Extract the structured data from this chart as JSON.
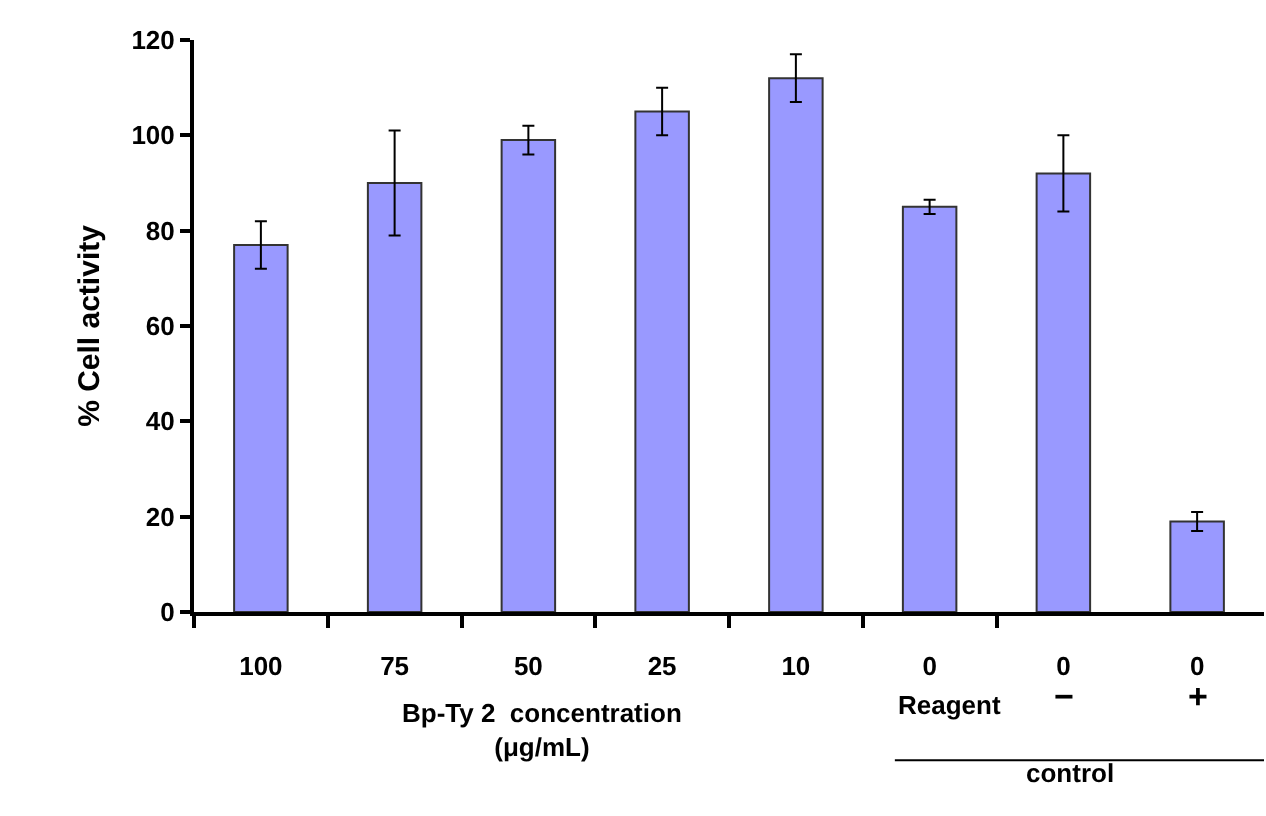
{
  "chart_data": {
    "type": "bar",
    "ylabel": "% Cell activity",
    "xlabel": "Bp-Ty 2  concentration\n(μg/mL)",
    "categories": [
      "100",
      "75",
      "50",
      "25",
      "10",
      "0",
      "0",
      "0"
    ],
    "values": [
      77,
      90,
      99,
      105,
      112,
      85,
      92,
      19
    ],
    "errors": [
      5,
      11,
      3,
      5,
      5,
      1.5,
      8,
      2
    ],
    "color": "#9999ff",
    "ylim": [
      0,
      120
    ],
    "yticks": [
      0,
      20,
      40,
      60,
      80,
      100,
      120
    ],
    "grid": false,
    "legend": false,
    "annotations": [
      "Reagent",
      "−",
      "+",
      "control"
    ]
  }
}
